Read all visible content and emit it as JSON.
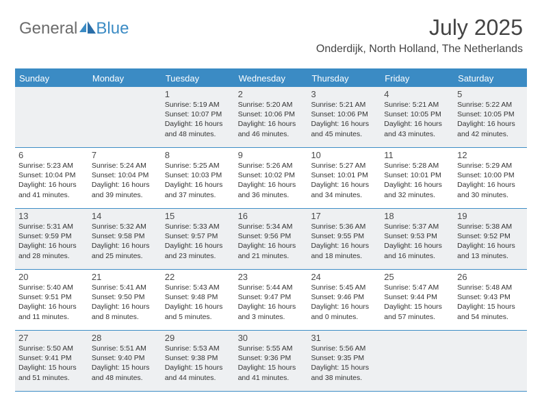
{
  "brand": {
    "general": "General",
    "blue": "Blue"
  },
  "header": {
    "month_title": "July 2025",
    "location": "Onderdijk, North Holland, The Netherlands"
  },
  "style": {
    "accent": "#3b8bc4",
    "shade_bg": "#eef0f2",
    "text": "#333333"
  },
  "days_of_week": [
    "Sunday",
    "Monday",
    "Tuesday",
    "Wednesday",
    "Thursday",
    "Friday",
    "Saturday"
  ],
  "calendar": {
    "type": "month-grid",
    "first_weekday_index": 2,
    "weeks": [
      [
        null,
        null,
        {
          "n": "1",
          "sr": "5:19 AM",
          "ss": "10:07 PM",
          "dl": "16 hours and 48 minutes."
        },
        {
          "n": "2",
          "sr": "5:20 AM",
          "ss": "10:06 PM",
          "dl": "16 hours and 46 minutes."
        },
        {
          "n": "3",
          "sr": "5:21 AM",
          "ss": "10:06 PM",
          "dl": "16 hours and 45 minutes."
        },
        {
          "n": "4",
          "sr": "5:21 AM",
          "ss": "10:05 PM",
          "dl": "16 hours and 43 minutes."
        },
        {
          "n": "5",
          "sr": "5:22 AM",
          "ss": "10:05 PM",
          "dl": "16 hours and 42 minutes."
        }
      ],
      [
        {
          "n": "6",
          "sr": "5:23 AM",
          "ss": "10:04 PM",
          "dl": "16 hours and 41 minutes."
        },
        {
          "n": "7",
          "sr": "5:24 AM",
          "ss": "10:04 PM",
          "dl": "16 hours and 39 minutes."
        },
        {
          "n": "8",
          "sr": "5:25 AM",
          "ss": "10:03 PM",
          "dl": "16 hours and 37 minutes."
        },
        {
          "n": "9",
          "sr": "5:26 AM",
          "ss": "10:02 PM",
          "dl": "16 hours and 36 minutes."
        },
        {
          "n": "10",
          "sr": "5:27 AM",
          "ss": "10:01 PM",
          "dl": "16 hours and 34 minutes."
        },
        {
          "n": "11",
          "sr": "5:28 AM",
          "ss": "10:01 PM",
          "dl": "16 hours and 32 minutes."
        },
        {
          "n": "12",
          "sr": "5:29 AM",
          "ss": "10:00 PM",
          "dl": "16 hours and 30 minutes."
        }
      ],
      [
        {
          "n": "13",
          "sr": "5:31 AM",
          "ss": "9:59 PM",
          "dl": "16 hours and 28 minutes."
        },
        {
          "n": "14",
          "sr": "5:32 AM",
          "ss": "9:58 PM",
          "dl": "16 hours and 25 minutes."
        },
        {
          "n": "15",
          "sr": "5:33 AM",
          "ss": "9:57 PM",
          "dl": "16 hours and 23 minutes."
        },
        {
          "n": "16",
          "sr": "5:34 AM",
          "ss": "9:56 PM",
          "dl": "16 hours and 21 minutes."
        },
        {
          "n": "17",
          "sr": "5:36 AM",
          "ss": "9:55 PM",
          "dl": "16 hours and 18 minutes."
        },
        {
          "n": "18",
          "sr": "5:37 AM",
          "ss": "9:53 PM",
          "dl": "16 hours and 16 minutes."
        },
        {
          "n": "19",
          "sr": "5:38 AM",
          "ss": "9:52 PM",
          "dl": "16 hours and 13 minutes."
        }
      ],
      [
        {
          "n": "20",
          "sr": "5:40 AM",
          "ss": "9:51 PM",
          "dl": "16 hours and 11 minutes."
        },
        {
          "n": "21",
          "sr": "5:41 AM",
          "ss": "9:50 PM",
          "dl": "16 hours and 8 minutes."
        },
        {
          "n": "22",
          "sr": "5:43 AM",
          "ss": "9:48 PM",
          "dl": "16 hours and 5 minutes."
        },
        {
          "n": "23",
          "sr": "5:44 AM",
          "ss": "9:47 PM",
          "dl": "16 hours and 3 minutes."
        },
        {
          "n": "24",
          "sr": "5:45 AM",
          "ss": "9:46 PM",
          "dl": "16 hours and 0 minutes."
        },
        {
          "n": "25",
          "sr": "5:47 AM",
          "ss": "9:44 PM",
          "dl": "15 hours and 57 minutes."
        },
        {
          "n": "26",
          "sr": "5:48 AM",
          "ss": "9:43 PM",
          "dl": "15 hours and 54 minutes."
        }
      ],
      [
        {
          "n": "27",
          "sr": "5:50 AM",
          "ss": "9:41 PM",
          "dl": "15 hours and 51 minutes."
        },
        {
          "n": "28",
          "sr": "5:51 AM",
          "ss": "9:40 PM",
          "dl": "15 hours and 48 minutes."
        },
        {
          "n": "29",
          "sr": "5:53 AM",
          "ss": "9:38 PM",
          "dl": "15 hours and 44 minutes."
        },
        {
          "n": "30",
          "sr": "5:55 AM",
          "ss": "9:36 PM",
          "dl": "15 hours and 41 minutes."
        },
        {
          "n": "31",
          "sr": "5:56 AM",
          "ss": "9:35 PM",
          "dl": "15 hours and 38 minutes."
        },
        null,
        null
      ]
    ]
  },
  "labels": {
    "sunrise_prefix": "Sunrise: ",
    "sunset_prefix": "Sunset: ",
    "daylight_prefix": "Daylight: "
  }
}
